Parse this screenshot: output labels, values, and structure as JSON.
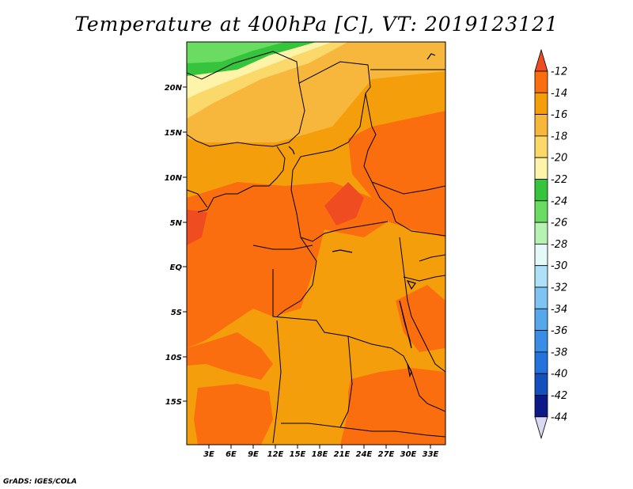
{
  "title": "Temperature at 400hPa [C], VT: 2019123121",
  "credit": "GrADS: IGES/COLA",
  "map": {
    "lon_labels": [
      "3E",
      "6E",
      "9E",
      "12E",
      "15E",
      "18E",
      "21E",
      "24E",
      "27E",
      "30E",
      "33E"
    ],
    "lat_labels": [
      "20N",
      "15N",
      "10N",
      "5N",
      "EQ",
      "5S",
      "10S",
      "15S"
    ],
    "lon_range": [
      0,
      35
    ],
    "lat_range": [
      -20,
      25
    ],
    "variable": "Temperature 400hPa",
    "units": "C"
  },
  "colorbar": {
    "levels": [
      "-12",
      "-14",
      "-16",
      "-18",
      "-20",
      "-22",
      "-24",
      "-26",
      "-28",
      "-30",
      "-32",
      "-34",
      "-36",
      "-38",
      "-40",
      "-42",
      "-44"
    ],
    "colors": [
      "#ef4c21",
      "#fa6e0f",
      "#f59e0c",
      "#f7b73c",
      "#fad86a",
      "#fdf3a9",
      "#35c43b",
      "#6bdc62",
      "#b6f2b1",
      "#e3faf8",
      "#aee0f7",
      "#7ec3f2",
      "#56a7ec",
      "#3a8de5",
      "#2372dd",
      "#1450bd",
      "#0b1a86",
      "#dad8f3"
    ]
  }
}
